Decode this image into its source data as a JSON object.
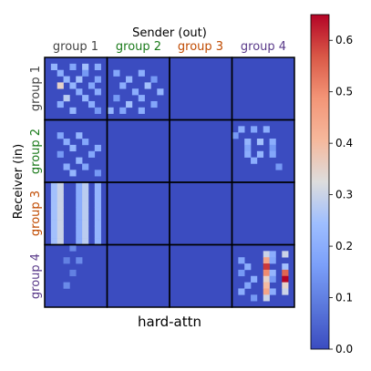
{
  "chart_data": {
    "type": "heatmap",
    "title": "hard-attn",
    "xlabel": "Sender (out)",
    "ylabel": "Receiver (in)",
    "x_groups": [
      "group 1",
      "group 2",
      "group 3",
      "group 4"
    ],
    "y_groups": [
      "group 1",
      "group 2",
      "group 3",
      "group 4"
    ],
    "group_colors": [
      "#444444",
      "#1a7a1a",
      "#c04a00",
      "#5a3a8a"
    ],
    "grid_size": 40,
    "block_size": 10,
    "colorbar": {
      "vmin": 0.0,
      "vmax": 0.65,
      "ticks": [
        0.0,
        0.1,
        0.2,
        0.3,
        0.4,
        0.5,
        0.6
      ],
      "tick_labels": [
        "0.0",
        "0.1",
        "0.2",
        "0.3",
        "0.4",
        "0.5",
        "0.6"
      ]
    },
    "cells": [
      {
        "r": 1,
        "c": 1,
        "v": 0.22
      },
      {
        "r": 1,
        "c": 4,
        "v": 0.18
      },
      {
        "r": 1,
        "c": 6,
        "v": 0.25
      },
      {
        "r": 1,
        "c": 8,
        "v": 0.2
      },
      {
        "r": 2,
        "c": 2,
        "v": 0.2
      },
      {
        "r": 2,
        "c": 6,
        "v": 0.15
      },
      {
        "r": 3,
        "c": 3,
        "v": 0.22
      },
      {
        "r": 3,
        "c": 5,
        "v": 0.25
      },
      {
        "r": 3,
        "c": 8,
        "v": 0.18
      },
      {
        "r": 4,
        "c": 2,
        "v": 0.35
      },
      {
        "r": 4,
        "c": 4,
        "v": 0.22
      },
      {
        "r": 4,
        "c": 7,
        "v": 0.18
      },
      {
        "r": 5,
        "c": 5,
        "v": 0.2
      },
      {
        "r": 5,
        "c": 8,
        "v": 0.2
      },
      {
        "r": 6,
        "c": 3,
        "v": 0.28
      },
      {
        "r": 6,
        "c": 6,
        "v": 0.22
      },
      {
        "r": 7,
        "c": 2,
        "v": 0.2
      },
      {
        "r": 7,
        "c": 7,
        "v": 0.2
      },
      {
        "r": 8,
        "c": 4,
        "v": 0.22
      },
      {
        "r": 8,
        "c": 8,
        "v": 0.15
      },
      {
        "r": 2,
        "c": 11,
        "v": 0.18
      },
      {
        "r": 2,
        "c": 15,
        "v": 0.2
      },
      {
        "r": 3,
        "c": 13,
        "v": 0.22
      },
      {
        "r": 3,
        "c": 17,
        "v": 0.15
      },
      {
        "r": 4,
        "c": 12,
        "v": 0.2
      },
      {
        "r": 4,
        "c": 16,
        "v": 0.25
      },
      {
        "r": 5,
        "c": 14,
        "v": 0.2
      },
      {
        "r": 5,
        "c": 18,
        "v": 0.22
      },
      {
        "r": 6,
        "c": 11,
        "v": 0.15
      },
      {
        "r": 6,
        "c": 15,
        "v": 0.2
      },
      {
        "r": 7,
        "c": 13,
        "v": 0.25
      },
      {
        "r": 7,
        "c": 17,
        "v": 0.18
      },
      {
        "r": 8,
        "c": 10,
        "v": 0.22
      },
      {
        "r": 8,
        "c": 12,
        "v": 0.18
      },
      {
        "r": 8,
        "c": 15,
        "v": 0.2
      },
      {
        "r": 12,
        "c": 2,
        "v": 0.18
      },
      {
        "r": 12,
        "c": 5,
        "v": 0.22
      },
      {
        "r": 13,
        "c": 3,
        "v": 0.2
      },
      {
        "r": 13,
        "c": 6,
        "v": 0.18
      },
      {
        "r": 14,
        "c": 4,
        "v": 0.22
      },
      {
        "r": 14,
        "c": 8,
        "v": 0.2
      },
      {
        "r": 15,
        "c": 2,
        "v": 0.15
      },
      {
        "r": 15,
        "c": 7,
        "v": 0.18
      },
      {
        "r": 16,
        "c": 5,
        "v": 0.22
      },
      {
        "r": 17,
        "c": 3,
        "v": 0.2
      },
      {
        "r": 17,
        "c": 6,
        "v": 0.18
      },
      {
        "r": 18,
        "c": 4,
        "v": 0.22
      },
      {
        "r": 18,
        "c": 8,
        "v": 0.15
      },
      {
        "r": 11,
        "c": 31,
        "v": 0.2
      },
      {
        "r": 11,
        "c": 33,
        "v": 0.18
      },
      {
        "r": 11,
        "c": 35,
        "v": 0.2
      },
      {
        "r": 12,
        "c": 30,
        "v": 0.15
      },
      {
        "r": 13,
        "c": 32,
        "v": 0.22
      },
      {
        "r": 13,
        "c": 34,
        "v": 0.25
      },
      {
        "r": 13,
        "c": 36,
        "v": 0.2
      },
      {
        "r": 14,
        "c": 32,
        "v": 0.18
      },
      {
        "r": 14,
        "c": 36,
        "v": 0.15
      },
      {
        "r": 15,
        "c": 32,
        "v": 0.2
      },
      {
        "r": 15,
        "c": 34,
        "v": 0.22
      },
      {
        "r": 15,
        "c": 36,
        "v": 0.18
      },
      {
        "r": 16,
        "c": 33,
        "v": 0.2
      },
      {
        "r": 17,
        "c": 37,
        "v": 0.15
      },
      {
        "r": 30,
        "c": 4,
        "v": 0.12
      },
      {
        "r": 32,
        "c": 3,
        "v": 0.1
      },
      {
        "r": 32,
        "c": 5,
        "v": 0.12
      },
      {
        "r": 34,
        "c": 4,
        "v": 0.1
      },
      {
        "r": 36,
        "c": 3,
        "v": 0.12
      },
      {
        "r": 31,
        "c": 35,
        "v": 0.3
      },
      {
        "r": 32,
        "c": 35,
        "v": 0.45
      },
      {
        "r": 33,
        "c": 35,
        "v": 0.6
      },
      {
        "r": 34,
        "c": 35,
        "v": 0.5
      },
      {
        "r": 35,
        "c": 35,
        "v": 0.35
      },
      {
        "r": 36,
        "c": 35,
        "v": 0.4
      },
      {
        "r": 37,
        "c": 35,
        "v": 0.45
      },
      {
        "r": 38,
        "c": 35,
        "v": 0.3
      },
      {
        "r": 31,
        "c": 36,
        "v": 0.2
      },
      {
        "r": 32,
        "c": 36,
        "v": 0.18
      },
      {
        "r": 34,
        "c": 36,
        "v": 0.22
      },
      {
        "r": 35,
        "c": 36,
        "v": 0.15
      },
      {
        "r": 37,
        "c": 36,
        "v": 0.2
      },
      {
        "r": 31,
        "c": 38,
        "v": 0.3
      },
      {
        "r": 33,
        "c": 38,
        "v": 0.25
      },
      {
        "r": 34,
        "c": 38,
        "v": 0.55
      },
      {
        "r": 35,
        "c": 38,
        "v": 0.65
      },
      {
        "r": 36,
        "c": 38,
        "v": 0.35
      },
      {
        "r": 37,
        "c": 38,
        "v": 0.3
      },
      {
        "r": 32,
        "c": 31,
        "v": 0.18
      },
      {
        "r": 33,
        "c": 32,
        "v": 0.2
      },
      {
        "r": 34,
        "c": 31,
        "v": 0.15
      },
      {
        "r": 35,
        "c": 33,
        "v": 0.2
      },
      {
        "r": 36,
        "c": 32,
        "v": 0.18
      },
      {
        "r": 37,
        "c": 31,
        "v": 0.2
      },
      {
        "r": 38,
        "c": 33,
        "v": 0.15
      }
    ],
    "column_bands": [
      {
        "c": 1,
        "rows": [
          20,
          29
        ],
        "v": 0.25
      },
      {
        "c": 2,
        "rows": [
          20,
          29
        ],
        "v": 0.3
      },
      {
        "c": 5,
        "rows": [
          20,
          29
        ],
        "v": 0.2
      },
      {
        "c": 6,
        "rows": [
          20,
          29
        ],
        "v": 0.28
      },
      {
        "c": 8,
        "rows": [
          20,
          29
        ],
        "v": 0.22
      }
    ]
  }
}
